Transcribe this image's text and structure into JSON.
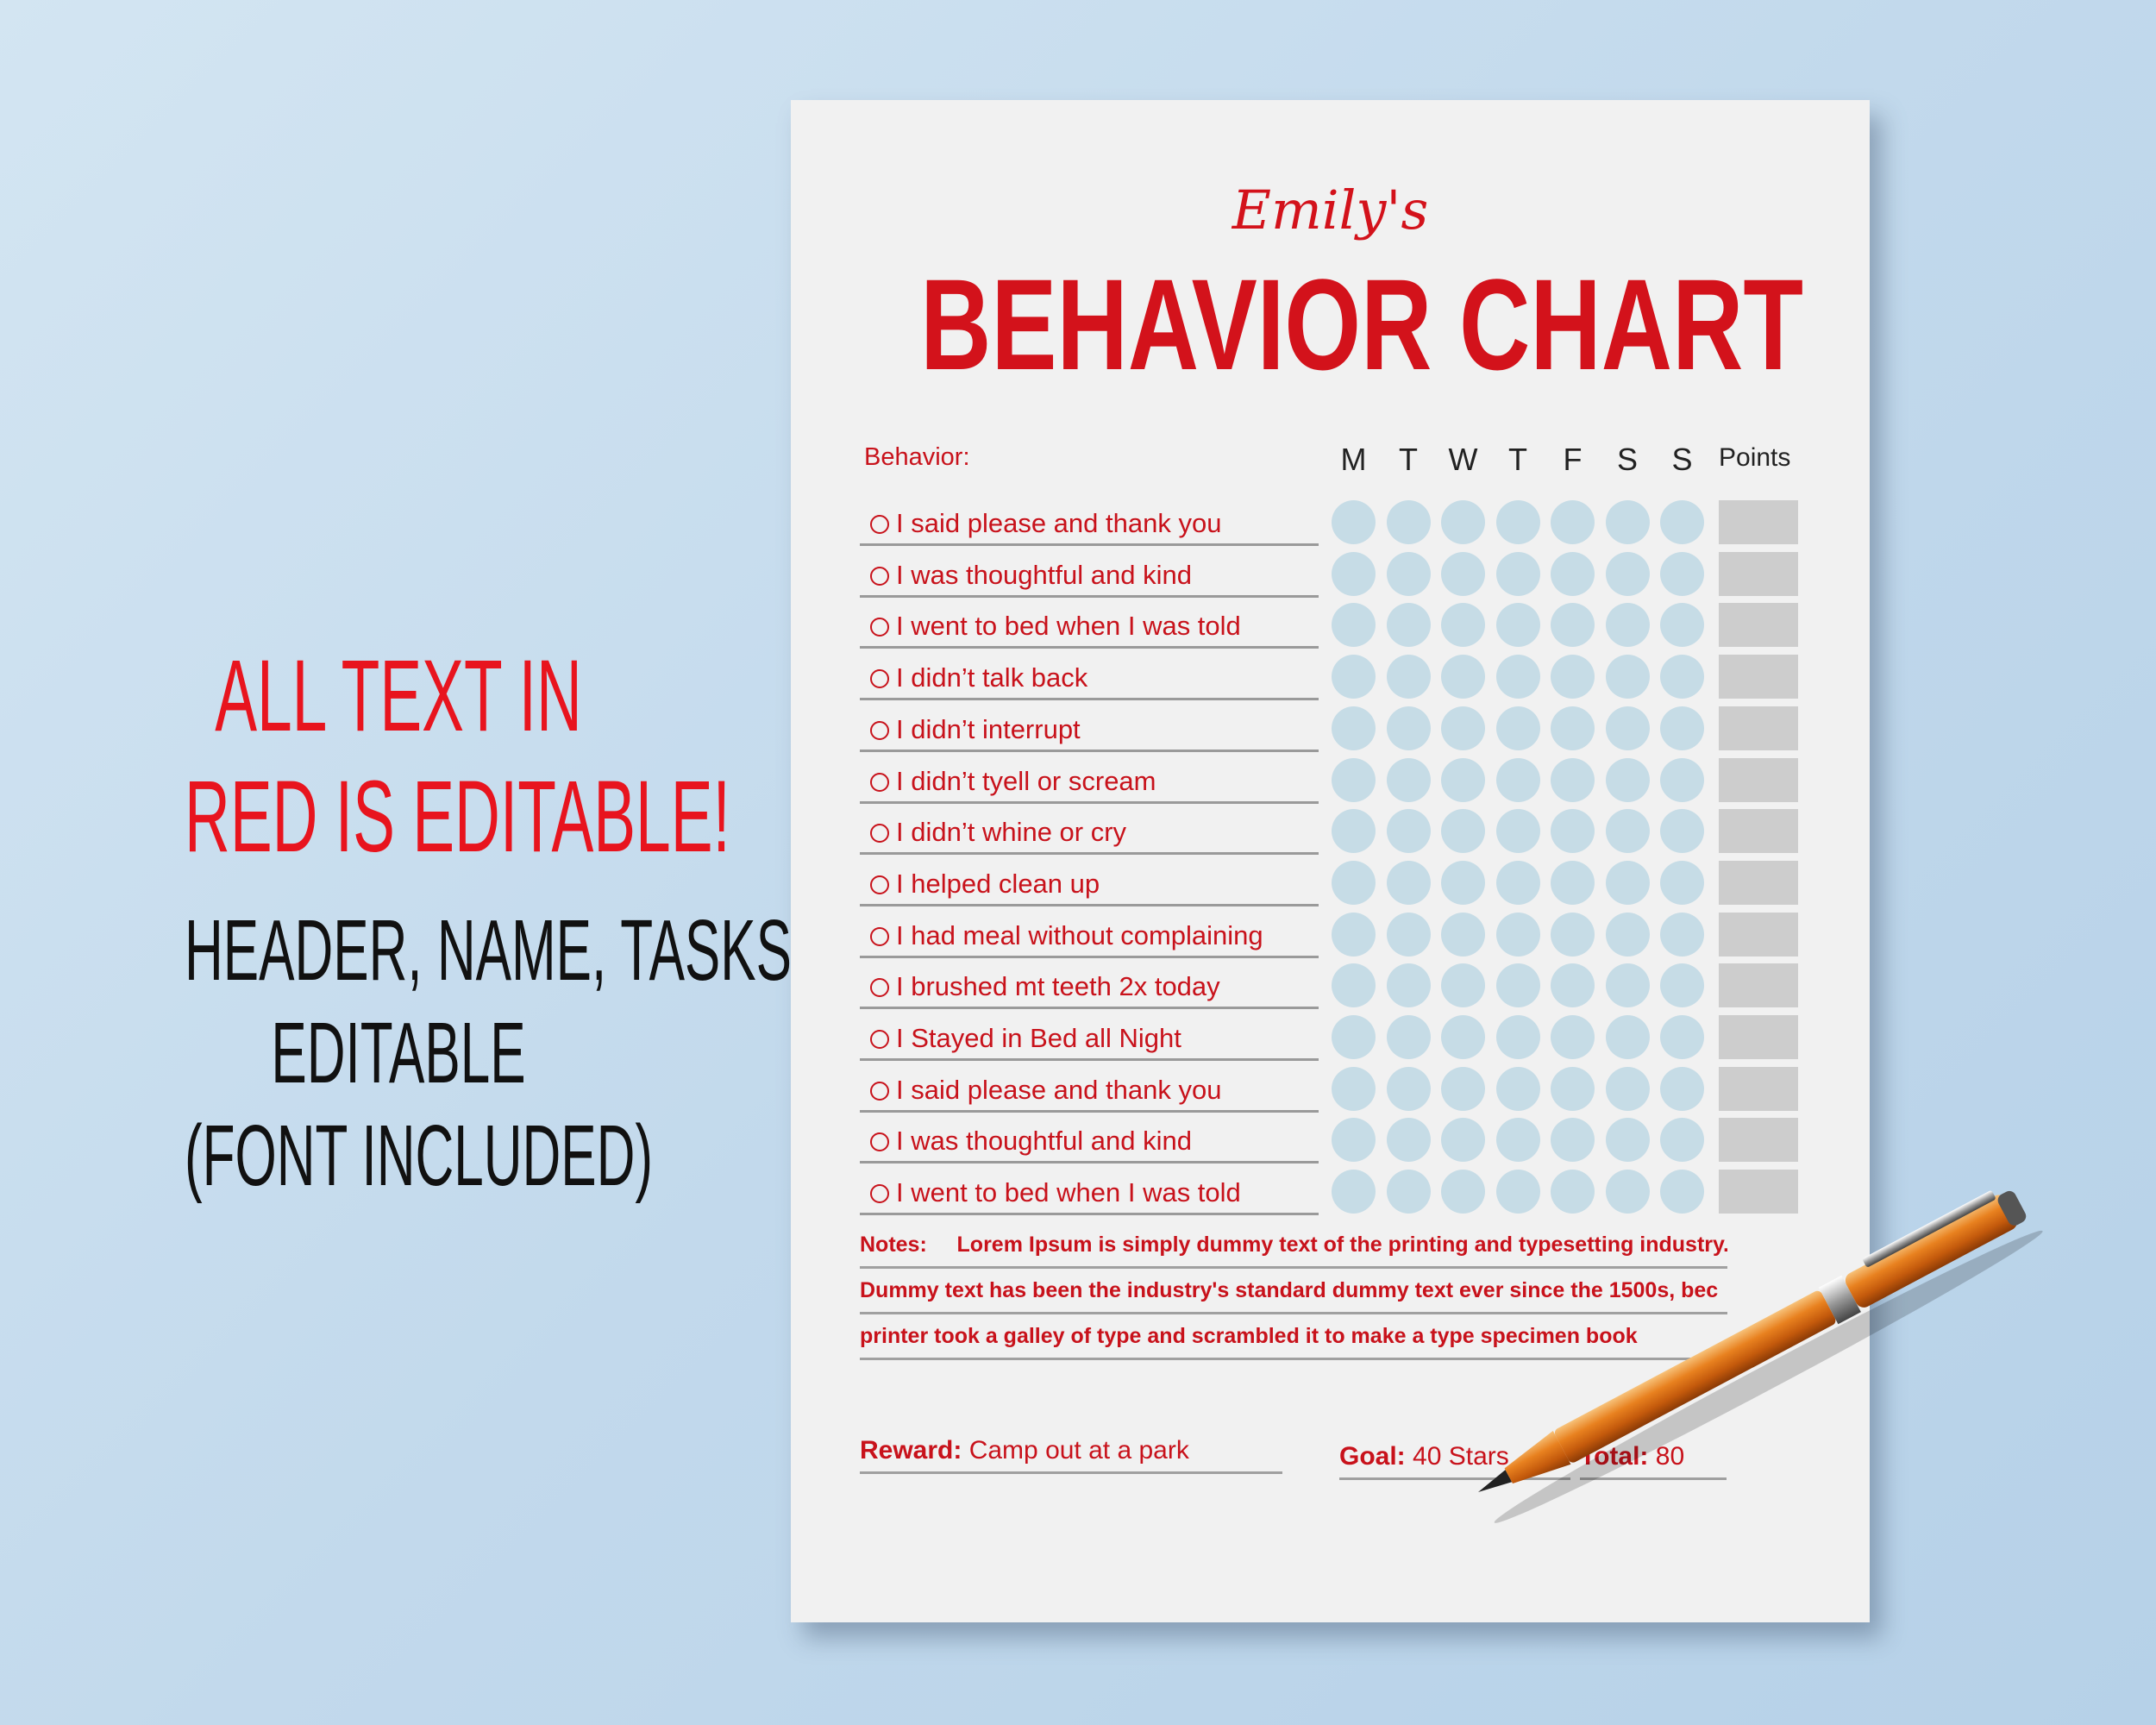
{
  "promo": {
    "line1": "ALL TEXT IN",
    "line2": "RED IS EDITABLE!",
    "line3": "HEADER, NAME, TASKS,",
    "line4": "EDITABLE",
    "line5": "(FONT INCLUDED)"
  },
  "chart": {
    "name": "Emily's",
    "title": "BEHAVIOR CHART",
    "behavior_label": "Behavior:",
    "days": [
      "M",
      "T",
      "W",
      "T",
      "F",
      "S",
      "S"
    ],
    "points_label": "Points",
    "behaviors": [
      "I said please and thank you",
      "I was thoughtful and kind",
      "I went to bed when I was told",
      "I didn’t talk back",
      "I didn’t interrupt",
      "I didn’t tyell or scream",
      "I didn’t whine or cry",
      "I helped clean up",
      "I had meal without complaining",
      "I brushed mt teeth 2x today",
      "I Stayed in Bed all Night",
      "I said please and thank you",
      "I was thoughtful and kind",
      "I went to bed when I was told"
    ],
    "notes_label": "Notes:",
    "notes": [
      "Lorem Ipsum is simply dummy text of the printing and typesetting industry.",
      "Dummy text has been the industry's standard dummy text ever since the 1500s, bec",
      "printer took a galley of type and scrambled it to make a type specimen book"
    ],
    "reward_label": "Reward:",
    "reward_value": "Camp out at a park",
    "goal_label": "Goal:",
    "goal_value": "40 Stars",
    "total_label": "Total:",
    "total_value": "80"
  },
  "colors": {
    "accent": "#d3121b",
    "circle": "#c6dce6",
    "points_box": "#cdcdcd",
    "background": "#c2d9ec"
  }
}
